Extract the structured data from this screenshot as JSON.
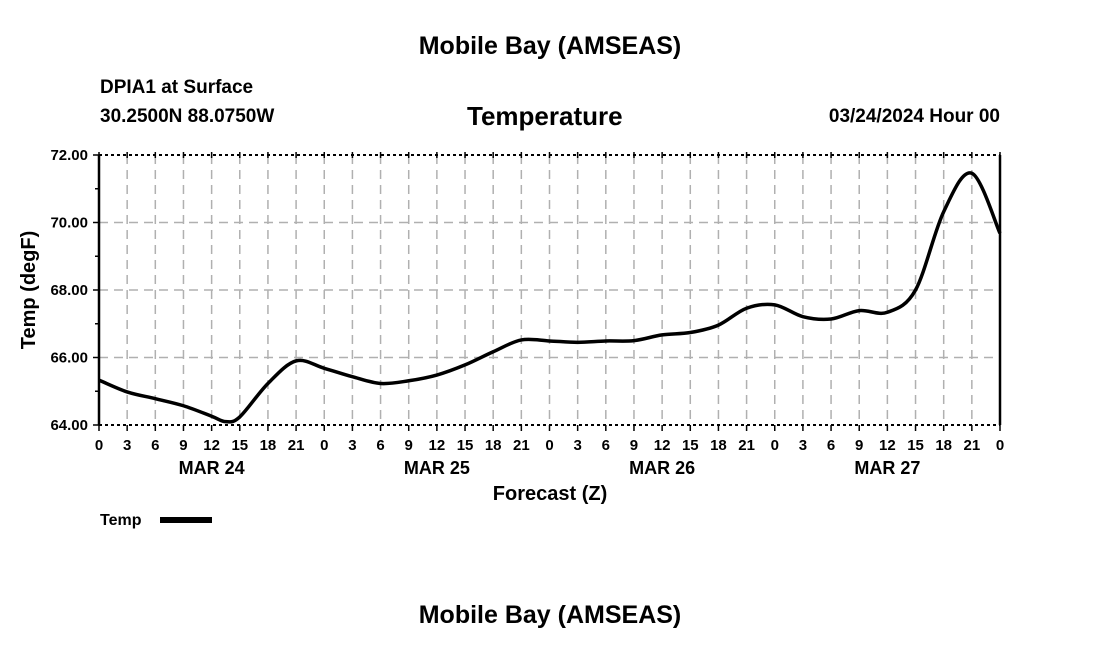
{
  "header": {
    "title": "Mobile Bay (AMSEAS)",
    "station": "DPIA1 at Surface",
    "coords": "30.2500N  88.0750W",
    "variable": "Temperature",
    "datetime": "03/24/2024 Hour 00",
    "footer_title": "Mobile Bay (AMSEAS)"
  },
  "chart_data": {
    "type": "line",
    "title": "Temperature",
    "xlabel": "Forecast (Z)",
    "ylabel": "Temp (degF)",
    "ylim": [
      64,
      72
    ],
    "xlim": [
      0,
      96
    ],
    "grid": true,
    "yticks": [
      "64.00",
      "66.00",
      "68.00",
      "70.00",
      "72.00"
    ],
    "xtick_labels": [
      "0",
      "3",
      "6",
      "9",
      "12",
      "15",
      "18",
      "21",
      "0",
      "3",
      "6",
      "9",
      "12",
      "15",
      "18",
      "21",
      "0",
      "3",
      "6",
      "9",
      "12",
      "15",
      "18",
      "21",
      "0",
      "3",
      "6",
      "9",
      "12",
      "15",
      "18",
      "21",
      "0"
    ],
    "day_labels": [
      {
        "label": "MAR 24",
        "hour": 12
      },
      {
        "label": "MAR 25",
        "hour": 36
      },
      {
        "label": "MAR 26",
        "hour": 60
      },
      {
        "label": "MAR 27",
        "hour": 84
      }
    ],
    "legend": {
      "label": "Temp",
      "placement": "bottom-left"
    },
    "series": [
      {
        "name": "Temp",
        "color": "#000000",
        "x": [
          0,
          3,
          6,
          9,
          12,
          13.5,
          15,
          18,
          21,
          24,
          27,
          30,
          33,
          36,
          39,
          42,
          45,
          48,
          51,
          54,
          57,
          60,
          63,
          66,
          69,
          72,
          75,
          78,
          81,
          84,
          87,
          90,
          93,
          96
        ],
        "values": [
          65.33,
          64.98,
          64.78,
          64.57,
          64.26,
          64.1,
          64.24,
          65.23,
          65.9,
          65.68,
          65.43,
          65.23,
          65.31,
          65.48,
          65.78,
          66.17,
          66.52,
          66.49,
          66.45,
          66.49,
          66.5,
          66.67,
          66.74,
          66.96,
          67.46,
          67.56,
          67.21,
          67.14,
          67.39,
          67.34,
          68.0,
          70.32,
          71.46,
          69.68
        ]
      }
    ]
  }
}
